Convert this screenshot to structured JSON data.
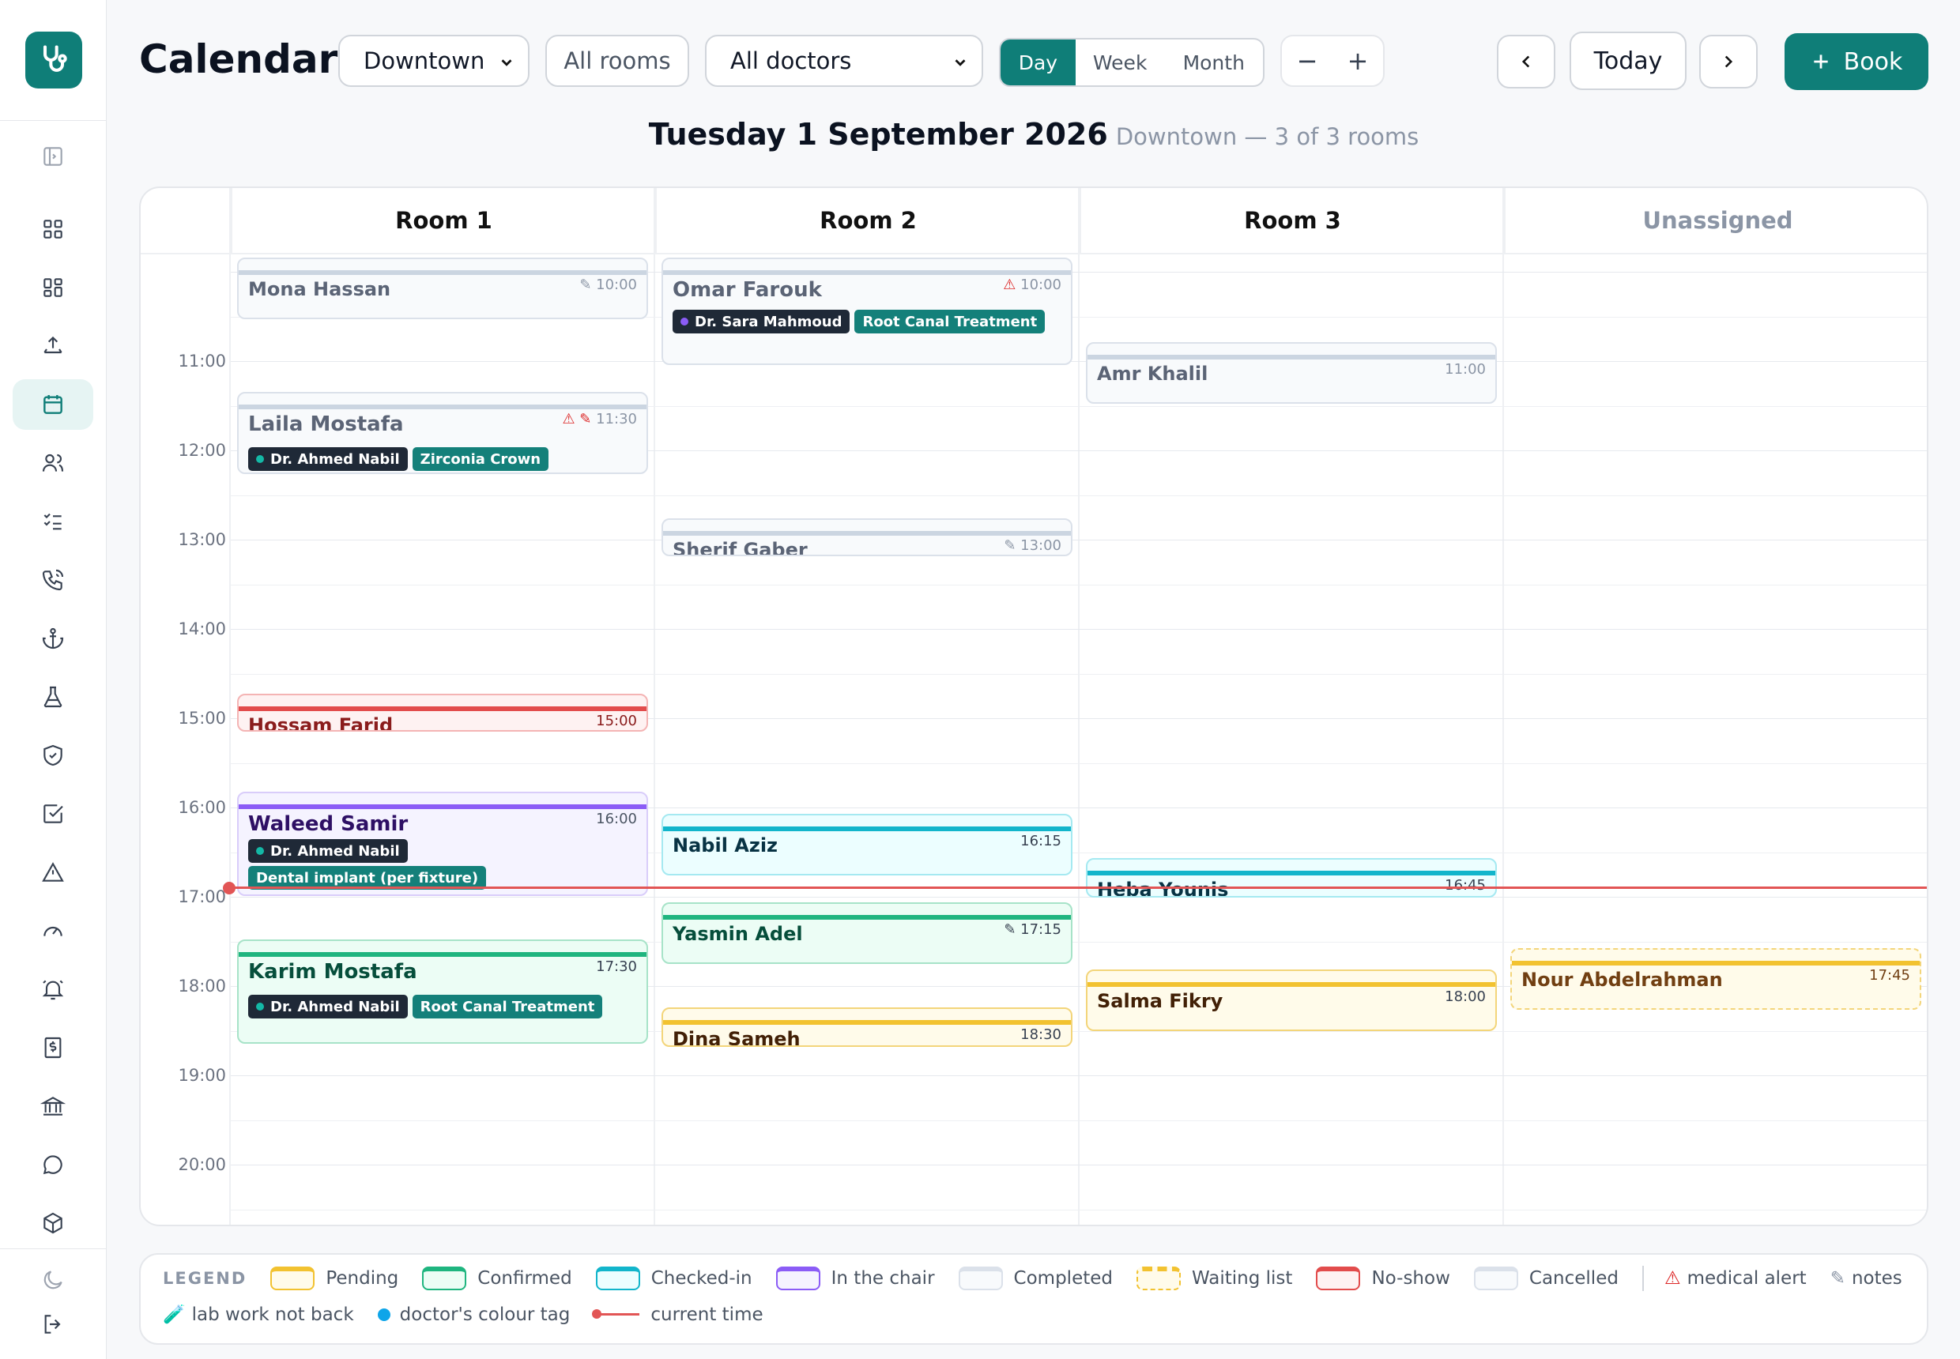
{
  "header": {
    "title": "Calendar",
    "location_select": "Downtown",
    "rooms_button": "All rooms",
    "doctors_select": "All doctors",
    "views": [
      "Day",
      "Week",
      "Month"
    ],
    "active_view": "Day",
    "zoom_out": "−",
    "zoom_in": "+",
    "today": "Today",
    "book": "Book",
    "book_icon": "plus-icon"
  },
  "date_header": {
    "date": "Tuesday 1 September 2026",
    "subtitle": "Downtown — 3 of 3 rooms"
  },
  "columns": [
    "Room 1",
    "Room 2",
    "Room 3",
    "Unassigned"
  ],
  "time_labels": [
    "11:00",
    "12:00",
    "13:00",
    "14:00",
    "15:00",
    "16:00",
    "17:00",
    "18:00",
    "19:00",
    "20:00"
  ],
  "current_time": "16:53",
  "appointments": [
    {
      "name": "Mona Hassan",
      "time": "10:00",
      "flags": "✎ ",
      "column": 0,
      "status": "completed"
    },
    {
      "name": "Laila Mostafa",
      "time": "11:30",
      "flags": "⚠ ✎ ",
      "column": 0,
      "status": "completed",
      "doctor": "Dr. Ahmed Nabil",
      "procedure": "Zirconia Crown"
    },
    {
      "name": "Hossam Farid",
      "time": "15:00",
      "flags": "",
      "column": 0,
      "status": "no-show"
    },
    {
      "name": "Waleed Samir",
      "time": "16:00",
      "flags": "",
      "column": 0,
      "status": "in-chair",
      "doctor": "Dr. Ahmed Nabil",
      "procedure": "Dental implant (per fixture)"
    },
    {
      "name": "Karim Mostafa",
      "time": "17:30",
      "flags": "",
      "column": 0,
      "status": "confirmed",
      "doctor": "Dr. Ahmed Nabil",
      "procedure": "Root Canal Treatment"
    },
    {
      "name": "Omar Farouk",
      "time": "10:00",
      "flags": "⚠ ",
      "column": 1,
      "status": "completed",
      "doctor": "Dr. Sara Mahmoud",
      "procedure": "Root Canal Treatment"
    },
    {
      "name": "Sherif Gaber",
      "time": "13:00",
      "flags": "✎ ",
      "column": 1,
      "status": "completed"
    },
    {
      "name": "Nabil Aziz",
      "time": "16:15",
      "flags": "",
      "column": 1,
      "status": "checked-in"
    },
    {
      "name": "Yasmin Adel",
      "time": "17:15",
      "flags": "✎ ",
      "column": 1,
      "status": "confirmed"
    },
    {
      "name": "Dina Sameh",
      "time": "18:30",
      "flags": "",
      "column": 1,
      "status": "pending"
    },
    {
      "name": "Amr Khalil",
      "time": "11:00",
      "flags": "",
      "column": 2,
      "status": "completed"
    },
    {
      "name": "Heba Younis",
      "time": "16:45",
      "flags": "",
      "column": 2,
      "status": "checked-in"
    },
    {
      "name": "Salma Fikry",
      "time": "18:00",
      "flags": "",
      "column": 2,
      "status": "pending"
    },
    {
      "name": "Nour Abdelrahman",
      "time": "17:45",
      "flags": "",
      "column": 3,
      "status": "waiting-list"
    }
  ],
  "doctor_colors": {
    "Dr. Ahmed Nabil": "#14b8a6",
    "Dr. Sara Mahmoud": "#8b5cf6"
  },
  "legend": {
    "title": "LEGEND",
    "statuses": [
      {
        "label": "Pending",
        "color": "#f2c230",
        "bg": "#fffbea"
      },
      {
        "label": "Confirmed",
        "color": "#1fb57f",
        "bg": "#ecfdf5"
      },
      {
        "label": "Checked-in",
        "color": "#12b5cb",
        "bg": "#ecfeff"
      },
      {
        "label": "In the chair",
        "color": "#8b5cf6",
        "bg": "#f5f3ff"
      },
      {
        "label": "Completed",
        "color": "#cbd5e1",
        "bg": "#f8fafc"
      },
      {
        "label": "Waiting list",
        "color": "#f2c230",
        "bg": "#fffbea"
      },
      {
        "label": "No-show",
        "color": "#e24c4c",
        "bg": "#fef2f2"
      },
      {
        "label": "Cancelled",
        "color": "#e5e7eb",
        "bg": "#f8fafc"
      }
    ],
    "medical_alert": "medical alert",
    "notes": "notes",
    "lab_work": "lab work not back",
    "doctor_tag": "doctor's colour tag",
    "current_time": "current time"
  },
  "sidebar": {
    "icons": [
      "panel-toggle-icon",
      "dashboard-icon",
      "widgets-icon",
      "upload-icon",
      "calendar-icon",
      "patients-icon",
      "checklist-icon",
      "phone-icon",
      "anchor-icon",
      "lab-flask-icon",
      "shield-icon",
      "checkbox-icon",
      "alert-icon",
      "gauge-icon",
      "bell-icon",
      "invoice-icon",
      "bank-icon",
      "chat-icon",
      "box-icon",
      "moon-icon",
      "logout-icon"
    ],
    "active": "calendar-icon"
  }
}
